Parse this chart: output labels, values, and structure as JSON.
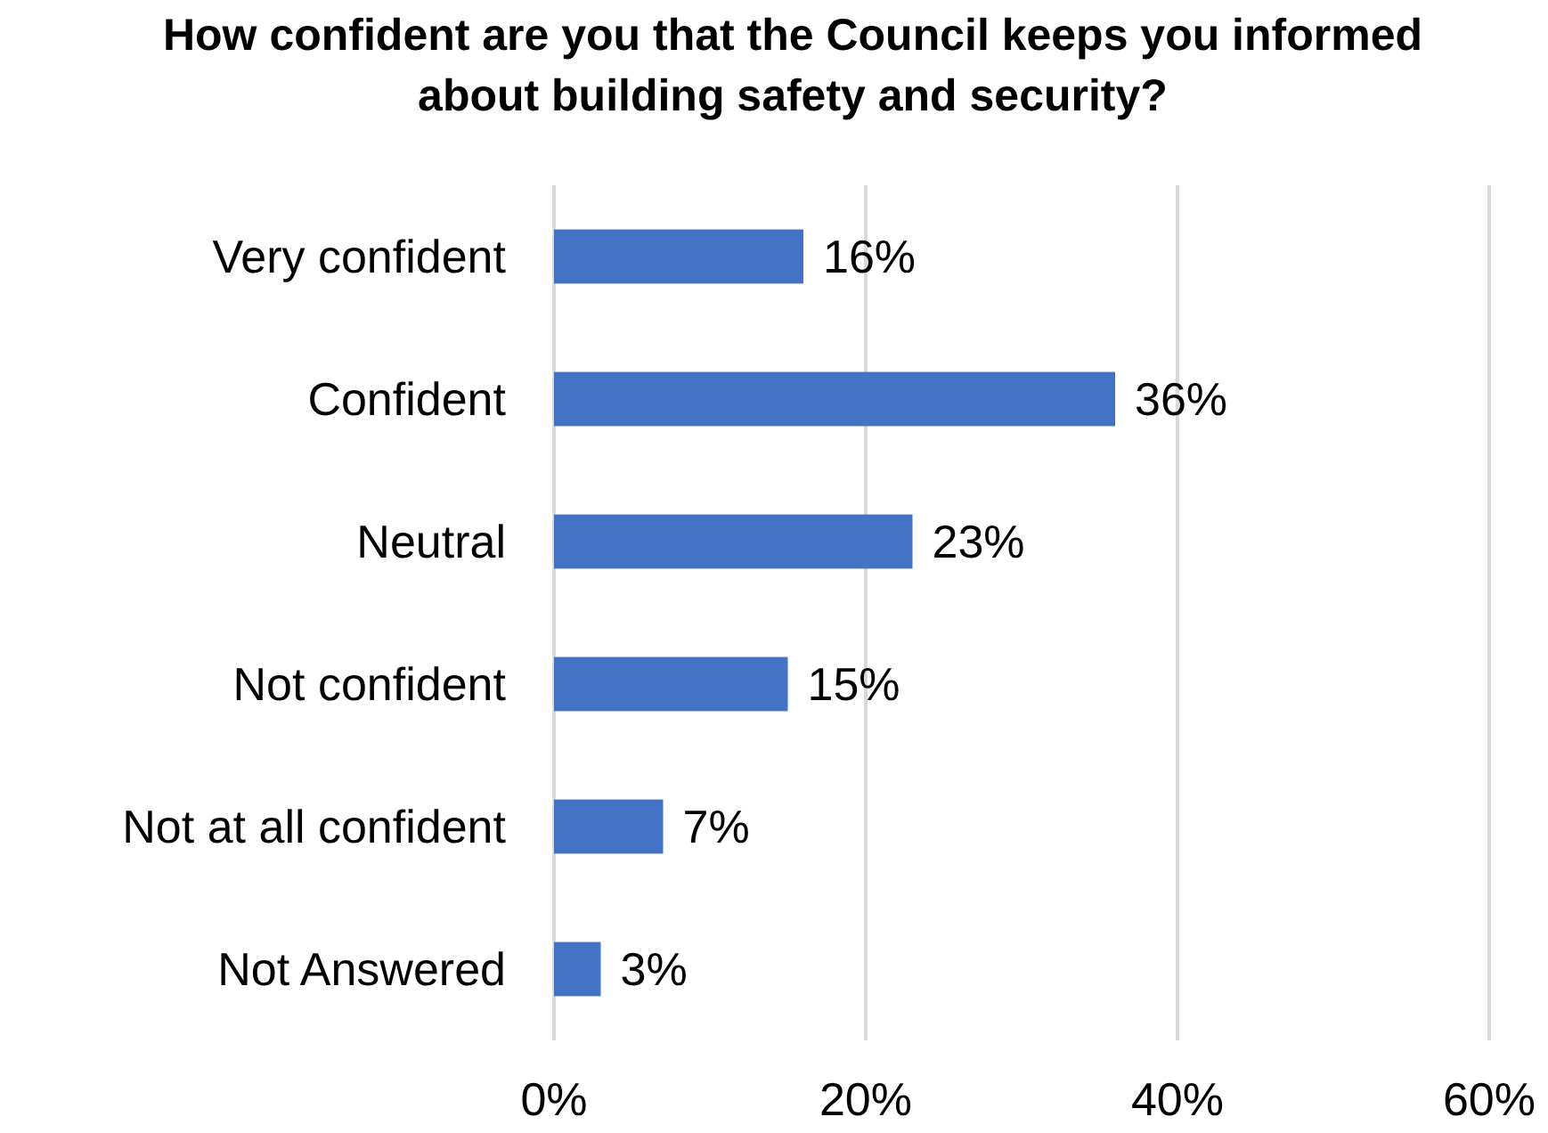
{
  "chart_data": {
    "type": "bar",
    "orientation": "horizontal",
    "title": "How confident are you that the Council keeps you informed about building safety and security?",
    "categories": [
      "Very confident",
      "Confident",
      "Neutral",
      "Not confident",
      "Not at all confident",
      "Not Answered"
    ],
    "values": [
      16,
      36,
      23,
      15,
      7,
      3
    ],
    "value_labels": [
      "16%",
      "36%",
      "23%",
      "15%",
      "7%",
      "3%"
    ],
    "color": "#4472c4",
    "xlim": [
      0,
      60
    ],
    "xticks": [
      {
        "value": 0,
        "label": "0%"
      },
      {
        "value": 20,
        "label": "20%"
      },
      {
        "value": 40,
        "label": "40%"
      },
      {
        "value": 60,
        "label": "60%"
      }
    ],
    "grid": "x"
  }
}
